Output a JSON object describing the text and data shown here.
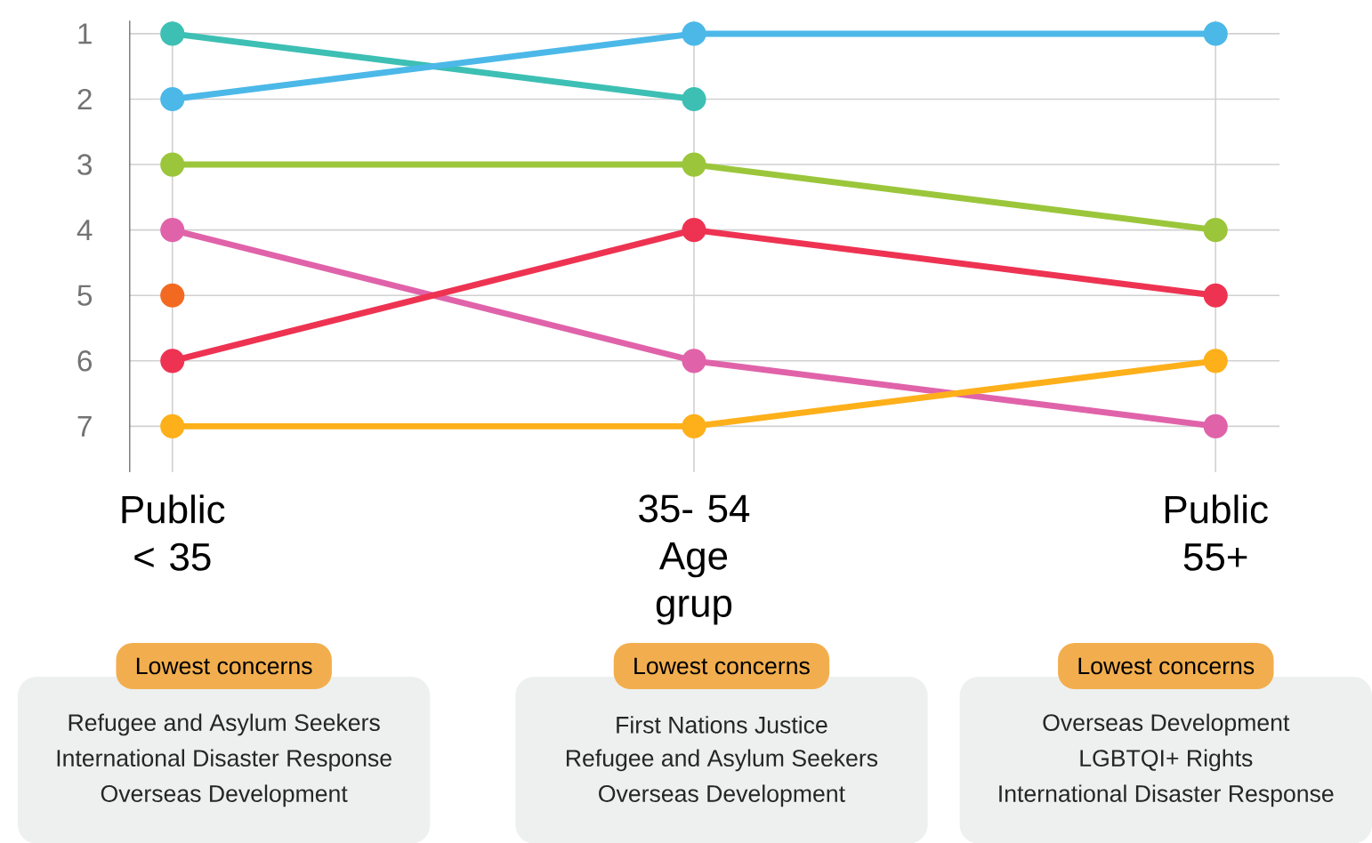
{
  "chart_data": {
    "type": "line",
    "categories": [
      "Public < 35",
      "35- 54 Age grup",
      "Public 55+"
    ],
    "series": [
      {
        "color": "#3dbfb4",
        "values": [
          1,
          2,
          null
        ]
      },
      {
        "color": "#4bb8e8",
        "values": [
          2,
          1,
          1
        ]
      },
      {
        "color": "#9bc63b",
        "values": [
          3,
          3,
          4
        ]
      },
      {
        "color": "#e063aa",
        "values": [
          4,
          6,
          7
        ]
      },
      {
        "color": "#f26a22",
        "values": [
          5,
          null,
          null
        ]
      },
      {
        "color": "#ee3352",
        "values": [
          6,
          4,
          5
        ]
      },
      {
        "color": "#fdb01a",
        "values": [
          7,
          7,
          6
        ]
      }
    ],
    "ylim": [
      7.7,
      0.8
    ],
    "yticks": [
      1,
      2,
      3,
      4,
      5,
      6,
      7
    ],
    "grid": true,
    "marker": "circle",
    "line_style": "solid",
    "annotations": [
      "Lowest concerns",
      "Refugee and Asylum Seekers",
      "International Disaster Response",
      "Overseas Development",
      "Lowest concerns",
      "First Nations Justice",
      "Refugee and Asylum Seekers",
      "Overseas Development",
      "Lowest concerns",
      "Overseas Development",
      "LGBTQI+ Rights",
      "International Disaster Response"
    ]
  }
}
